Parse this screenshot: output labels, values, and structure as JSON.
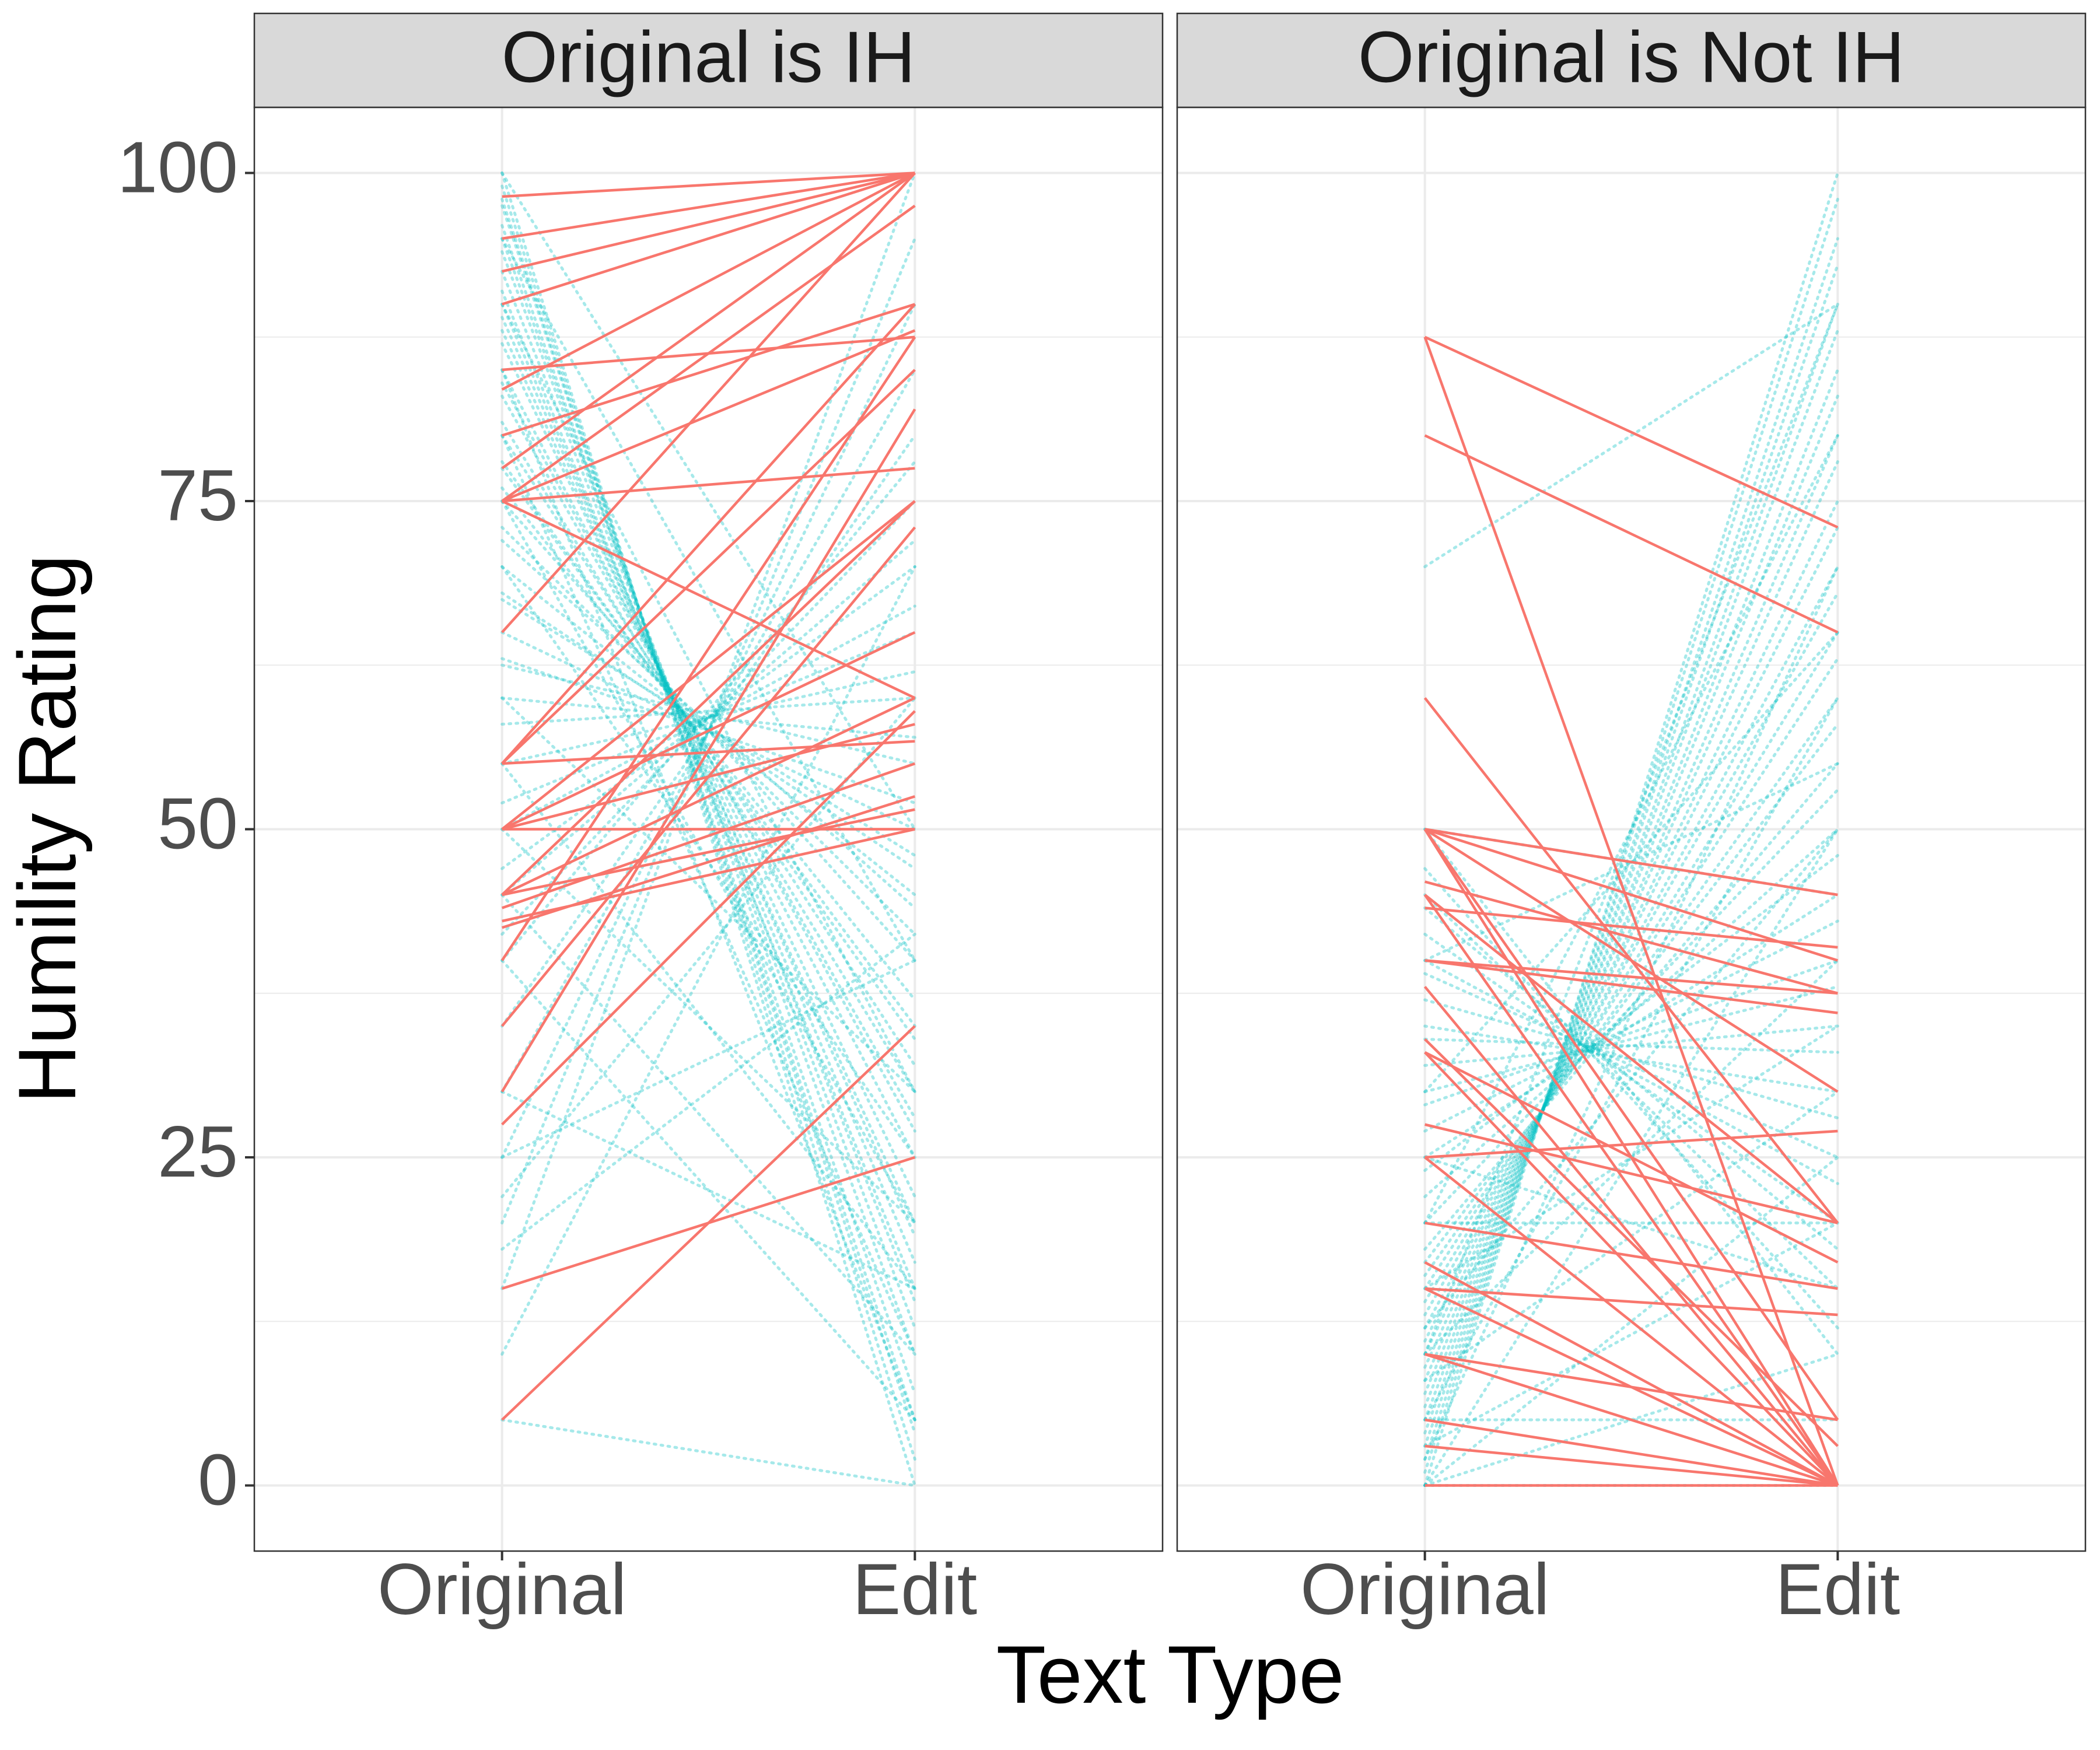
{
  "chart_data": {
    "type": "slope",
    "xlabel": "Text Type",
    "ylabel": "Humility Rating",
    "categories": [
      "Original",
      "Edit"
    ],
    "ylim": [
      -5,
      105
    ],
    "yticks": [
      0,
      25,
      50,
      75,
      100
    ],
    "yminor": [
      12.5,
      37.5,
      62.5,
      87.5
    ],
    "grid": true,
    "facets": [
      {
        "title": "Original is IH",
        "series": [
          {
            "color": "#00bfc4",
            "dash": "dotted",
            "values": [
              [
                100,
                0
              ],
              [
                99,
                2
              ],
              [
                98,
                4
              ],
              [
                97.5,
                5
              ],
              [
                96,
                7
              ],
              [
                95,
                10
              ],
              [
                94,
                12
              ],
              [
                92.5,
                14
              ],
              [
                91,
                15
              ],
              [
                90,
                17
              ],
              [
                89,
                19
              ],
              [
                88,
                20
              ],
              [
                87,
                22
              ],
              [
                85,
                25
              ],
              [
                84,
                27
              ],
              [
                83,
                28
              ],
              [
                81,
                30
              ],
              [
                80,
                32
              ],
              [
                78,
                34
              ],
              [
                77.5,
                35
              ],
              [
                76,
                37
              ],
              [
                75,
                40
              ],
              [
                73,
                42
              ],
              [
                72,
                44
              ],
              [
                70,
                45
              ],
              [
                68,
                47
              ],
              [
                67.5,
                48
              ],
              [
                65,
                50
              ],
              [
                63,
                52
              ],
              [
                62.5,
                55
              ],
              [
                60,
                57
              ],
              [
                58,
                60
              ],
              [
                55,
                62
              ],
              [
                52,
                65
              ],
              [
                50,
                67
              ],
              [
                47,
                70
              ],
              [
                45,
                72
              ],
              [
                42,
                75
              ],
              [
                40,
                78
              ],
              [
                35,
                80
              ],
              [
                30,
                85
              ],
              [
                25,
                90
              ],
              [
                20,
                95
              ],
              [
                15,
                100
              ],
              [
                100,
                50
              ],
              [
                95,
                40
              ],
              [
                90,
                30
              ],
              [
                85,
                5
              ],
              [
                80,
                10
              ],
              [
                75,
                20
              ],
              [
                70,
                25
              ],
              [
                60,
                30
              ],
              [
                55,
                15
              ],
              [
                50,
                20
              ],
              [
                45,
                10
              ],
              [
                40,
                5
              ],
              [
                30,
                15
              ],
              [
                25,
                40
              ],
              [
                22,
                60
              ],
              [
                10,
                70
              ],
              [
                5,
                0
              ],
              [
                18,
                42
              ]
            ]
          },
          {
            "color": "#f8766d",
            "dash": "solid",
            "values": [
              [
                98.2,
                100
              ],
              [
                95,
                100
              ],
              [
                92.5,
                100
              ],
              [
                90,
                100
              ],
              [
                85,
                87.5
              ],
              [
                83.5,
                100
              ],
              [
                80,
                90
              ],
              [
                77.5,
                100
              ],
              [
                75,
                77.5
              ],
              [
                75,
                97.5
              ],
              [
                75,
                88
              ],
              [
                65,
                100
              ],
              [
                55,
                90
              ],
              [
                55,
                56.7
              ],
              [
                55,
                85
              ],
              [
                50,
                50
              ],
              [
                50,
                65
              ],
              [
                50,
                75
              ],
              [
                45,
                60
              ],
              [
                45,
                75
              ],
              [
                44,
                55
              ],
              [
                42.5,
                52.5
              ],
              [
                40,
                87.5
              ],
              [
                35,
                73
              ],
              [
                30,
                82
              ],
              [
                27.5,
                59
              ],
              [
                15,
                25
              ],
              [
                5,
                35
              ],
              [
                45,
                51.5
              ],
              [
                50,
                58
              ],
              [
                43,
                50
              ],
              [
                75,
                60
              ]
            ]
          }
        ]
      },
      {
        "title": "Original is Not IH",
        "series": [
          {
            "color": "#00bfc4",
            "dash": "dotted",
            "values": [
              [
                0,
                100
              ],
              [
                1,
                98
              ],
              [
                2,
                95
              ],
              [
                3,
                93
              ],
              [
                4,
                90
              ],
              [
                5,
                88
              ],
              [
                6,
                85
              ],
              [
                7,
                83
              ],
              [
                8,
                80
              ],
              [
                9,
                78
              ],
              [
                10,
                75
              ],
              [
                11,
                73
              ],
              [
                12,
                70
              ],
              [
                13,
                68
              ],
              [
                14,
                65
              ],
              [
                15,
                63
              ],
              [
                16,
                60
              ],
              [
                17,
                58
              ],
              [
                18,
                55
              ],
              [
                20,
                53
              ],
              [
                22,
                50
              ],
              [
                24,
                48
              ],
              [
                25,
                45
              ],
              [
                27,
                43
              ],
              [
                29,
                40
              ],
              [
                30,
                38
              ],
              [
                32,
                35
              ],
              [
                34,
                33
              ],
              [
                35,
                30
              ],
              [
                37,
                28
              ],
              [
                39,
                25
              ],
              [
                40,
                23
              ],
              [
                42,
                20
              ],
              [
                44,
                18
              ],
              [
                45,
                15
              ],
              [
                47,
                12
              ],
              [
                50,
                10
              ],
              [
                0,
                50
              ],
              [
                0,
                25
              ],
              [
                0,
                10
              ],
              [
                2,
                70
              ],
              [
                5,
                60
              ],
              [
                10,
                40
              ],
              [
                15,
                35
              ],
              [
                20,
                20
              ],
              [
                25,
                15
              ],
              [
                5,
                5
              ],
              [
                0,
                0
              ],
              [
                10,
                90
              ],
              [
                20,
                80
              ],
              [
                30,
                65
              ],
              [
                40,
                55
              ],
              [
                50,
                45
              ],
              [
                70,
                90
              ],
              [
                8,
                30
              ],
              [
                12,
                50
              ],
              [
                3,
                20
              ]
            ]
          },
          {
            "color": "#f8766d",
            "dash": "solid",
            "values": [
              [
                87.5,
                0
              ],
              [
                87.5,
                73
              ],
              [
                80,
                65
              ],
              [
                60,
                20
              ],
              [
                50,
                45
              ],
              [
                50,
                40
              ],
              [
                50,
                5
              ],
              [
                50,
                0
              ],
              [
                50,
                30
              ],
              [
                46,
                37.5
              ],
              [
                45,
                20
              ],
              [
                45,
                0
              ],
              [
                44,
                41
              ],
              [
                40,
                37.5
              ],
              [
                40,
                36
              ],
              [
                38,
                0
              ],
              [
                34,
                3
              ],
              [
                33,
                0
              ],
              [
                33,
                17
              ],
              [
                27.5,
                20
              ],
              [
                25,
                27
              ],
              [
                25,
                0
              ],
              [
                20,
                15
              ],
              [
                17,
                0
              ],
              [
                15,
                13
              ],
              [
                15,
                0
              ],
              [
                10,
                5
              ],
              [
                10,
                0
              ],
              [
                5,
                0
              ],
              [
                3,
                0
              ],
              [
                0,
                0
              ]
            ]
          }
        ]
      }
    ]
  }
}
